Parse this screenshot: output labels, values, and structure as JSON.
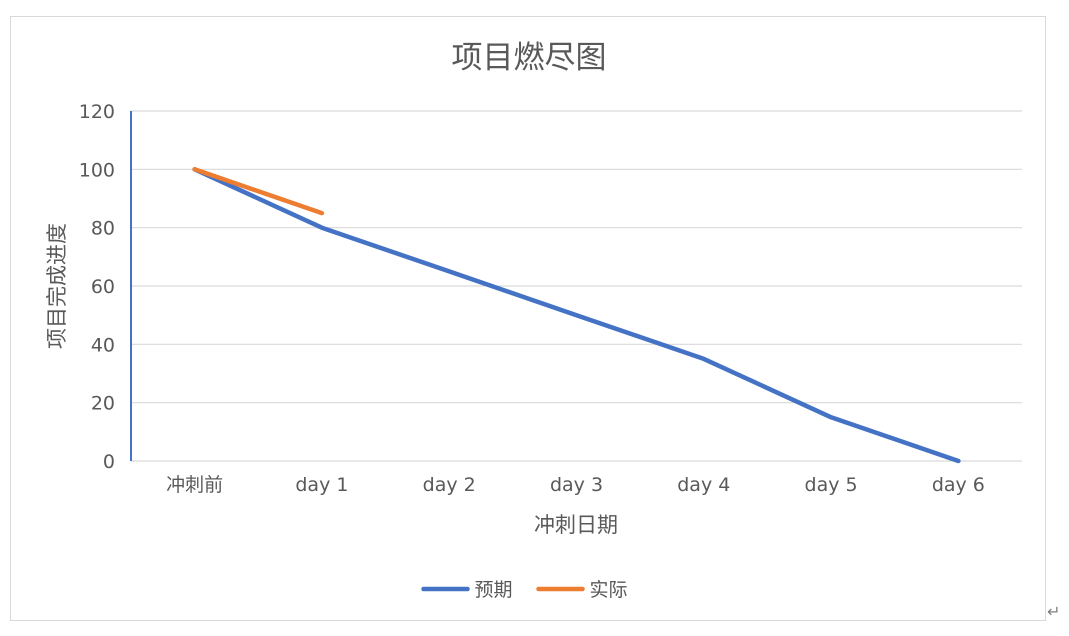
{
  "chart_data": {
    "type": "line",
    "title": "项目燃尽图",
    "xlabel": "冲刺日期",
    "ylabel": "项目完成进度",
    "categories": [
      "冲刺前",
      "day 1",
      "day 2",
      "day 3",
      "day 4",
      "day 5",
      "day 6"
    ],
    "ylim": [
      0,
      120
    ],
    "yticks": [
      0,
      20,
      40,
      60,
      80,
      100,
      120
    ],
    "grid": true,
    "legend_position": "bottom",
    "series": [
      {
        "name": "预期",
        "color": "#4472c4",
        "values": [
          100,
          80,
          65,
          50,
          35,
          15,
          0
        ]
      },
      {
        "name": "实际",
        "color": "#ed7d31",
        "values": [
          100,
          85,
          null,
          null,
          null,
          null,
          null
        ]
      }
    ]
  },
  "doc": {
    "return_mark": "↵"
  }
}
